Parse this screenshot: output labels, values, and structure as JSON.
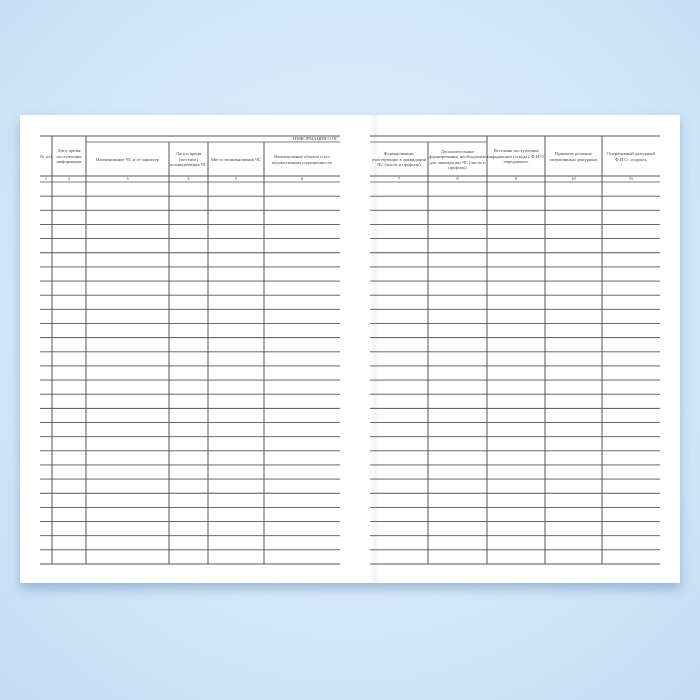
{
  "left_page": {
    "group_header": "ИНФОРМАЦИЯ О ЧС",
    "columns": [
      {
        "num": "1",
        "label": "№ п/п"
      },
      {
        "num": "2",
        "label": "Дата, время поступления информации"
      },
      {
        "num": "3",
        "label": "Наименование ЧС и ее характер"
      },
      {
        "num": "4",
        "label": "Дата и время (местное) возникновения ЧС"
      },
      {
        "num": "5",
        "label": "Место возникновения ЧС"
      },
      {
        "num": "6",
        "label": "Наименование объекта и его ведомственная подчиненность"
      }
    ]
  },
  "right_page": {
    "columns": [
      {
        "num": "7",
        "label": "Формирования, участвующие в ликвидации ЧС (число и профиль)"
      },
      {
        "num": "8",
        "label": "Дополнительные формирования, необходимые для ликвидации ЧС (число и профиль)"
      },
      {
        "num": "9",
        "label": "Источник поступления информации (откуда), Ф.И.О. передавшего"
      },
      {
        "num": "10",
        "label": "Принятое решение оперативным дежурным"
      },
      {
        "num": "11",
        "label": "Оперативный дежурный Ф.И.О., подпись"
      }
    ]
  },
  "colors": {
    "background": "#d6e9f8",
    "page": "#ffffff",
    "lines": "#555555"
  }
}
